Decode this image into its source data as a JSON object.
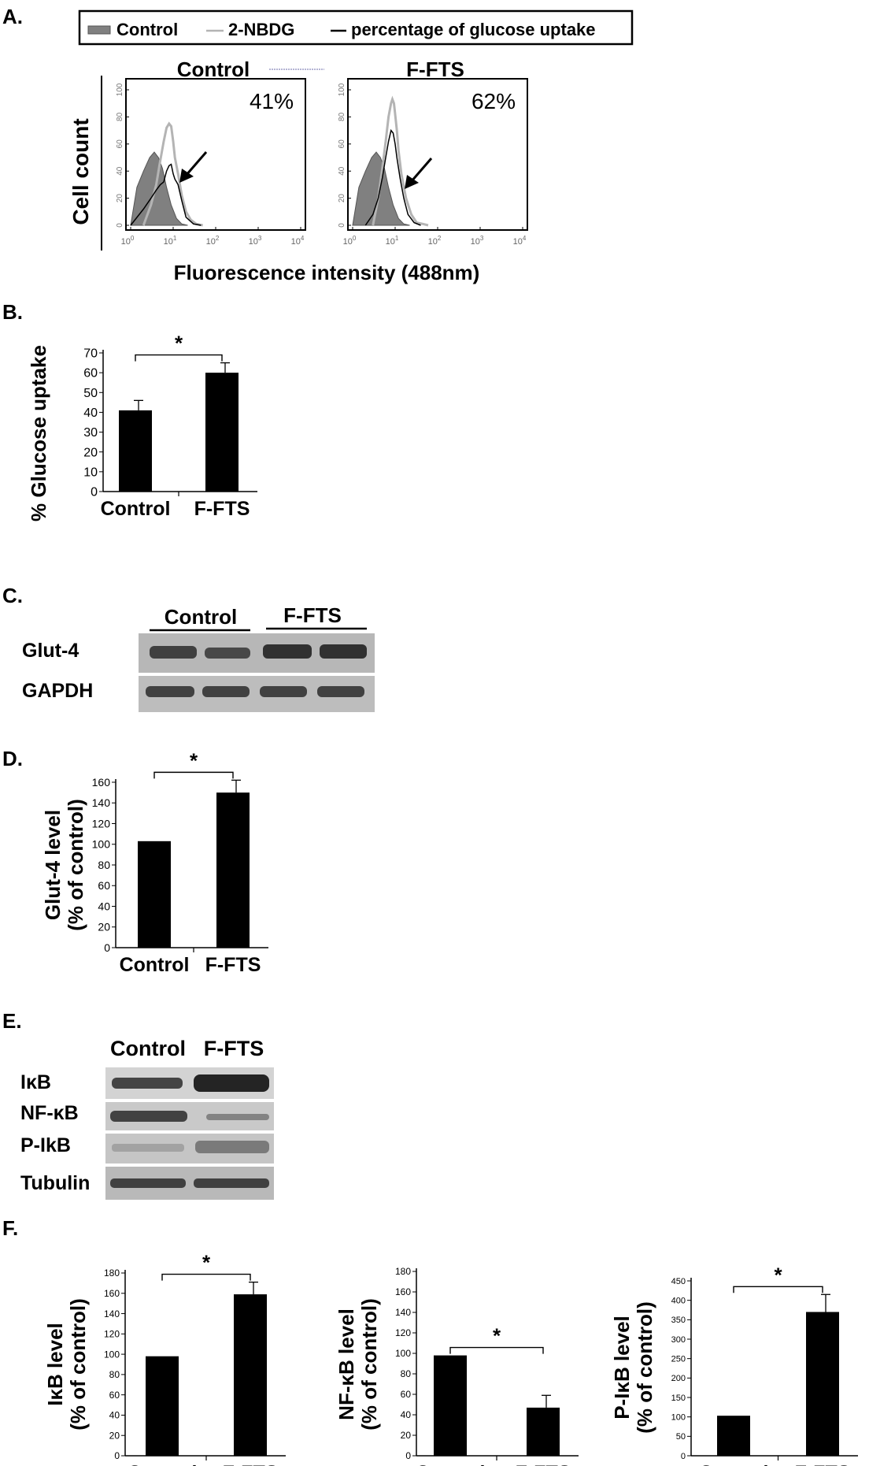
{
  "figure": {
    "panel_labels": [
      "A.",
      "B.",
      "C.",
      "D.",
      "E.",
      "F."
    ]
  },
  "panel_a": {
    "legend": [
      "Control",
      "2-NBDG",
      "percentage of glucose uptake"
    ],
    "ylabel": "Cell count",
    "xlabel": "Fluorescence intensity (488nm)",
    "y_ticks": [
      "0",
      "20",
      "40",
      "60",
      "80",
      "100"
    ],
    "x_ticks": [
      {
        "base": "10",
        "exp": "0"
      },
      {
        "base": "10",
        "exp": "1"
      },
      {
        "base": "10",
        "exp": "2"
      },
      {
        "base": "10",
        "exp": "3"
      },
      {
        "base": "10",
        "exp": "4"
      }
    ],
    "histograms": [
      {
        "title": "Control",
        "percent": "41%"
      },
      {
        "title": "F-FTS",
        "percent": "62%"
      }
    ]
  },
  "panel_c": {
    "headers": [
      "Control",
      "F-FTS"
    ],
    "rows": [
      "Glut-4",
      "GAPDH"
    ]
  },
  "panel_e": {
    "headers": [
      "Control",
      "F-FTS"
    ],
    "rows": [
      "IκB",
      "NF-κB",
      "P-IkB",
      "Tubulin"
    ]
  },
  "colors": {
    "bar": "#000000",
    "control_fill": "#808080",
    "nbdg_line": "#b4b4b4"
  },
  "chart_data": [
    {
      "id": "A-control",
      "type": "area",
      "title": "Control",
      "annotation": "41%",
      "x_scale": "log",
      "xlim": [
        1,
        10000
      ],
      "ylim": [
        0,
        100
      ],
      "series": [
        {
          "name": "Control",
          "x": [
            1,
            1.4,
            2,
            2.8,
            3.6,
            4.5,
            5.6,
            7,
            9,
            12,
            16,
            22
          ],
          "y": [
            0,
            28,
            40,
            50,
            54,
            50,
            42,
            28,
            15,
            5,
            1,
            0
          ]
        },
        {
          "name": "2-NBDG",
          "x": [
            2,
            3,
            4,
            5,
            6,
            7,
            8,
            9,
            10,
            11,
            13,
            16,
            20,
            26,
            35,
            50
          ],
          "y": [
            0,
            15,
            30,
            48,
            62,
            72,
            75,
            73,
            62,
            50,
            38,
            22,
            10,
            4,
            1,
            0
          ]
        },
        {
          "name": "percentage of glucose uptake",
          "x": [
            1,
            2,
            3,
            4,
            5,
            6,
            7,
            8,
            9,
            10,
            11,
            12,
            13,
            16,
            20,
            30,
            45
          ],
          "y": [
            0,
            12,
            20,
            26,
            30,
            32,
            40,
            44,
            45,
            38,
            34,
            32,
            30,
            18,
            6,
            1,
            0
          ]
        }
      ]
    },
    {
      "id": "A-ffts",
      "type": "area",
      "title": "F-FTS",
      "annotation": "62%",
      "x_scale": "log",
      "xlim": [
        1,
        10000
      ],
      "ylim": [
        0,
        100
      ],
      "series": [
        {
          "name": "Control",
          "x": [
            1,
            1.4,
            2,
            2.8,
            3.6,
            4.5,
            5.6,
            7,
            9,
            12,
            16,
            22
          ],
          "y": [
            0,
            28,
            40,
            50,
            54,
            50,
            42,
            28,
            15,
            5,
            1,
            0
          ]
        },
        {
          "name": "2-NBDG",
          "x": [
            3,
            4,
            5,
            6,
            7,
            8,
            8.6,
            9.4,
            10,
            11,
            12,
            14,
            18,
            24,
            32,
            45,
            60
          ],
          "y": [
            0,
            20,
            42,
            62,
            80,
            90,
            93,
            90,
            82,
            70,
            55,
            38,
            20,
            8,
            2,
            1,
            0
          ]
        },
        {
          "name": "percentage of glucose uptake",
          "x": [
            2,
            3,
            4,
            5,
            6,
            7,
            8,
            9,
            10,
            11,
            13,
            16,
            20,
            28,
            40
          ],
          "y": [
            0,
            8,
            20,
            35,
            50,
            62,
            70,
            68,
            60,
            50,
            35,
            20,
            8,
            2,
            0
          ]
        }
      ]
    },
    {
      "id": "B",
      "type": "bar",
      "categories": [
        "Control",
        "F-FTS"
      ],
      "values": [
        41,
        60
      ],
      "errors": [
        5,
        5
      ],
      "ylabel": "% Glucose uptake",
      "ylim": [
        0,
        70
      ],
      "yticks": [
        0,
        10,
        20,
        30,
        40,
        50,
        60,
        70
      ],
      "significance": "*"
    },
    {
      "id": "D",
      "type": "bar",
      "categories": [
        "Control",
        "F-FTS"
      ],
      "values": [
        103,
        150
      ],
      "errors": [
        0,
        12
      ],
      "ylabel": [
        "Glut-4 level",
        "(% of control)"
      ],
      "ylim": [
        0,
        160
      ],
      "yticks": [
        0,
        20,
        40,
        60,
        80,
        100,
        120,
        140,
        160
      ],
      "significance": "*"
    },
    {
      "id": "F1",
      "type": "bar",
      "categories": [
        "Control",
        "F-FTS"
      ],
      "values": [
        98,
        159
      ],
      "errors": [
        0,
        12
      ],
      "ylabel": [
        "IκB level",
        "(% of control)"
      ],
      "ylim": [
        0,
        180
      ],
      "yticks": [
        0,
        20,
        40,
        60,
        80,
        100,
        120,
        140,
        160,
        180
      ],
      "significance": "*"
    },
    {
      "id": "F2",
      "type": "bar",
      "categories": [
        "Control",
        "F-FTS"
      ],
      "values": [
        98,
        47
      ],
      "errors": [
        0,
        12
      ],
      "ylabel": [
        "NF-κB level",
        "(% of control)"
      ],
      "ylim": [
        0,
        180
      ],
      "yticks": [
        0,
        20,
        40,
        60,
        80,
        100,
        120,
        140,
        160,
        180
      ],
      "significance": "*"
    },
    {
      "id": "F3",
      "type": "bar",
      "categories": [
        "Control",
        "F-FTS"
      ],
      "values": [
        103,
        370
      ],
      "errors": [
        0,
        45
      ],
      "ylabel": [
        "P-IκB level",
        "(% of control)"
      ],
      "ylim": [
        0,
        450
      ],
      "yticks": [
        0,
        50,
        100,
        150,
        200,
        250,
        300,
        350,
        400,
        450
      ],
      "significance": "*"
    }
  ]
}
